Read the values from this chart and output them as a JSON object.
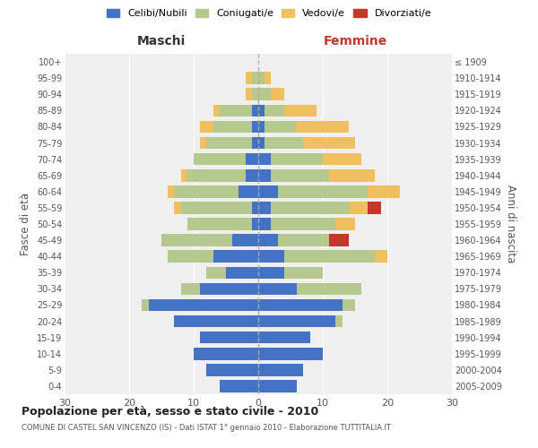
{
  "age_groups": [
    "0-4",
    "5-9",
    "10-14",
    "15-19",
    "20-24",
    "25-29",
    "30-34",
    "35-39",
    "40-44",
    "45-49",
    "50-54",
    "55-59",
    "60-64",
    "65-69",
    "70-74",
    "75-79",
    "80-84",
    "85-89",
    "90-94",
    "95-99",
    "100+"
  ],
  "birth_years": [
    "2005-2009",
    "2000-2004",
    "1995-1999",
    "1990-1994",
    "1985-1989",
    "1980-1984",
    "1975-1979",
    "1970-1974",
    "1965-1969",
    "1960-1964",
    "1955-1959",
    "1950-1954",
    "1945-1949",
    "1940-1944",
    "1935-1939",
    "1930-1934",
    "1925-1929",
    "1920-1924",
    "1915-1919",
    "1910-1914",
    "≤ 1909"
  ],
  "colors": {
    "celibi": "#4472C4",
    "coniugati": "#B5C98E",
    "vedovi": "#F0C060",
    "divorziati": "#C0392B"
  },
  "maschi": {
    "celibi": [
      6,
      8,
      10,
      9,
      13,
      17,
      9,
      5,
      7,
      4,
      1,
      1,
      3,
      2,
      2,
      1,
      1,
      1,
      0,
      0,
      0
    ],
    "coniugati": [
      0,
      0,
      0,
      0,
      0,
      1,
      3,
      3,
      7,
      11,
      10,
      11,
      10,
      9,
      8,
      7,
      6,
      5,
      1,
      1,
      0
    ],
    "vedovi": [
      0,
      0,
      0,
      0,
      0,
      0,
      0,
      0,
      0,
      0,
      0,
      1,
      1,
      1,
      0,
      1,
      2,
      1,
      1,
      1,
      0
    ],
    "divorziati": [
      0,
      0,
      0,
      0,
      0,
      0,
      0,
      0,
      0,
      0,
      0,
      0,
      0,
      0,
      0,
      0,
      0,
      0,
      0,
      0,
      0
    ]
  },
  "femmine": {
    "celibi": [
      6,
      7,
      10,
      8,
      12,
      13,
      6,
      4,
      4,
      3,
      2,
      2,
      3,
      2,
      2,
      1,
      1,
      1,
      0,
      0,
      0
    ],
    "coniugati": [
      0,
      0,
      0,
      0,
      1,
      2,
      10,
      6,
      14,
      8,
      10,
      12,
      14,
      9,
      8,
      6,
      5,
      3,
      2,
      1,
      0
    ],
    "vedovi": [
      0,
      0,
      0,
      0,
      0,
      0,
      0,
      0,
      2,
      0,
      3,
      3,
      5,
      7,
      6,
      8,
      8,
      5,
      2,
      1,
      0
    ],
    "divorziati": [
      0,
      0,
      0,
      0,
      0,
      0,
      0,
      0,
      0,
      3,
      0,
      2,
      0,
      0,
      0,
      0,
      0,
      0,
      0,
      0,
      0
    ]
  },
  "title": "Popolazione per età, sesso e stato civile - 2010",
  "subtitle": "COMUNE DI CASTEL SAN VINCENZO (IS) - Dati ISTAT 1° gennaio 2010 - Elaborazione TUTTITALIA.IT",
  "xlabel_maschi": "Maschi",
  "xlabel_femmine": "Femmine",
  "ylabel_left": "Fasce di età",
  "ylabel_right": "Anni di nascita",
  "legend_labels": [
    "Celibi/Nubili",
    "Coniugati/e",
    "Vedovi/e",
    "Divorziati/e"
  ],
  "xlim": 30,
  "bg_color": "#efefef"
}
